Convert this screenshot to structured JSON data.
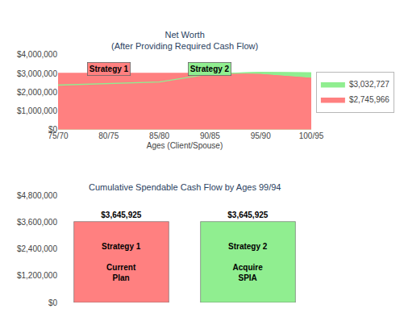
{
  "chart_data": [
    {
      "type": "area",
      "title": "Net Worth\n(After Providing Required Cash Flow)",
      "x_label": "Ages (Client/Spouse)",
      "categories": [
        "75/70",
        "80/75",
        "85/80",
        "90/85",
        "95/90",
        "100/95"
      ],
      "series": [
        {
          "name": "$2,745,966",
          "color": "#FF8080",
          "values": [
            3000000,
            3000000,
            3000000,
            3000000,
            2950000,
            2745966
          ]
        },
        {
          "name": "$3,032,727",
          "color": "#90EE90",
          "values": [
            2380000,
            2460000,
            2550000,
            2980000,
            3060000,
            3032727
          ]
        }
      ],
      "ylim": [
        0,
        4000000
      ],
      "yticks": [
        {
          "value": 0,
          "label": "$0"
        },
        {
          "value": 1000000,
          "label": "$1,000,000"
        },
        {
          "value": 2000000,
          "label": "$2,000,000"
        },
        {
          "value": 3000000,
          "label": "$3,000,000"
        },
        {
          "value": 4000000,
          "label": "$4,000,000"
        }
      ],
      "grid": false,
      "legend": "right",
      "annotations": [
        {
          "text": "Strategy 1",
          "x": 1,
          "y": 3000000,
          "text_y": 3250000,
          "color": "#FF8080"
        },
        {
          "text": "Strategy 2",
          "x": 3,
          "y": 2980000,
          "text_y": 3250000,
          "color": "#90EE90"
        }
      ]
    },
    {
      "type": "bar",
      "title": "Cumulative Spendable Cash Flow by Ages 99/94",
      "categories": [
        null,
        null
      ],
      "values": [
        3645925,
        3645925
      ],
      "colors": [
        "#FF8080",
        "#90EE90"
      ],
      "data_labels": true,
      "value_labels": [
        "$3,645,925",
        "$3,645,925"
      ],
      "ylim": [
        0,
        4800000
      ],
      "yticks": [
        {
          "value": 0,
          "label": "$0"
        },
        {
          "value": 1200000,
          "label": "$1,200,000"
        },
        {
          "value": 2400000,
          "label": "$2,400,000"
        },
        {
          "value": 3600000,
          "label": "$3,600,000"
        },
        {
          "value": 4800000,
          "label": "$4,800,000"
        }
      ],
      "grid": false,
      "tick_labels": "y",
      "annotations": [
        {
          "text": "Strategy 1\n\nCurrent\nPlan",
          "x": 0
        },
        {
          "text": "Strategy 2\n\nAcquire\nSPIA",
          "x": 1
        }
      ]
    }
  ]
}
